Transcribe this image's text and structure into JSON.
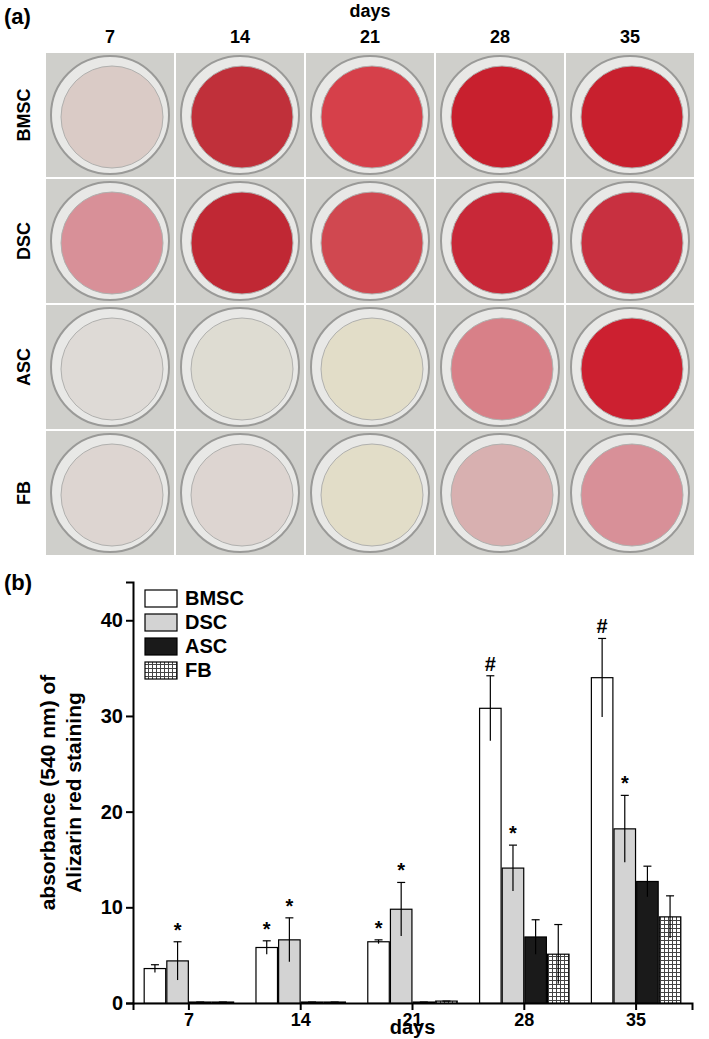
{
  "chart_data": [
    {
      "type": "image_grid",
      "title": "(a)",
      "x_label": "days",
      "categories": [
        7,
        14,
        21,
        28,
        35
      ],
      "rows": [
        "BMSC",
        "DSC",
        "ASC",
        "FB"
      ],
      "colors": [
        [
          "#dacbc6",
          "#c0303a",
          "#d6404a",
          "#c8202e",
          "#c8202e"
        ],
        [
          "#d89098",
          "#c02834",
          "#d04850",
          "#c82838",
          "#c83040"
        ],
        [
          "#dedad6",
          "#dedcd2",
          "#e2ddc8",
          "#d88088",
          "#cc2030"
        ],
        [
          "#ddd5d1",
          "#ddd5d1",
          "#e2ddc8",
          "#d8b0b0",
          "#d89098"
        ]
      ]
    },
    {
      "type": "bar",
      "title": "(b)",
      "x_label": "days",
      "y_label": "absorbance (540 nm) of\nAlizarin red staining",
      "categories": [
        7,
        14,
        21,
        28,
        35
      ],
      "ylim": [
        0,
        44
      ],
      "yticks": [
        0,
        10,
        20,
        30,
        40
      ],
      "legend": "upper left",
      "series": [
        {
          "name": "BMSC",
          "color": "#ffffff",
          "values": [
            3.6,
            5.8,
            6.4,
            30.8,
            34.0
          ],
          "errors": [
            0.4,
            0.7,
            0.2,
            3.4,
            4.1
          ],
          "annotations": [
            null,
            "*",
            "*",
            "#",
            "#"
          ]
        },
        {
          "name": "DSC",
          "color": "#d3d3d3",
          "values": [
            4.4,
            6.6,
            9.8,
            14.1,
            18.2
          ],
          "errors": [
            2.0,
            2.3,
            2.8,
            2.4,
            3.5
          ],
          "annotations": [
            "*",
            "*",
            "*",
            "*",
            "*"
          ]
        },
        {
          "name": "ASC",
          "color": "#1a1a1a",
          "values": [
            0.1,
            0.1,
            0.1,
            6.9,
            12.7
          ],
          "errors": [
            0.0,
            0.0,
            0.0,
            1.8,
            1.6
          ]
        },
        {
          "name": "FB",
          "color": "#444444",
          "values": [
            0.1,
            0.1,
            0.2,
            5.1,
            9.0
          ],
          "errors": [
            0.0,
            0.0,
            0.0,
            3.1,
            2.2
          ]
        }
      ]
    }
  ]
}
